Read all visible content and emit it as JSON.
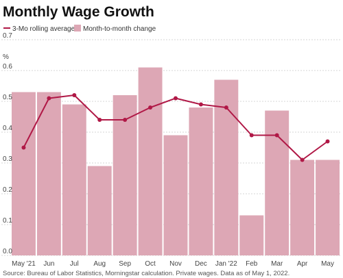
{
  "chart_data": {
    "type": "bar",
    "title": "Monthly Wage Growth",
    "ylabel": "%",
    "ylim": [
      0,
      0.7
    ],
    "yticks": [
      "0.0",
      "0.1",
      "0.2",
      "0.3",
      "0.4",
      "0.5",
      "0.6",
      "0.7"
    ],
    "grid": true,
    "legend_position": "top-left",
    "categories": [
      "May '21",
      "Jun",
      "Jul",
      "Aug",
      "Sep",
      "Oct",
      "Nov",
      "Dec",
      "Jan '22",
      "Feb",
      "Mar",
      "Apr",
      "May"
    ],
    "series": [
      {
        "name": "3-Mo rolling average",
        "kind": "line",
        "color": "#b01846",
        "values": [
          0.35,
          0.51,
          0.52,
          0.44,
          0.44,
          0.48,
          0.51,
          0.49,
          0.48,
          0.39,
          0.39,
          0.31,
          0.37
        ]
      },
      {
        "name": "Month-to-month change",
        "kind": "bar",
        "color": "#dda7b5",
        "values": [
          0.53,
          0.53,
          0.49,
          0.29,
          0.52,
          0.61,
          0.39,
          0.48,
          0.57,
          0.13,
          0.47,
          0.31,
          0.31
        ]
      }
    ],
    "source": "Source: Bureau of Labor Statistics, Morningstar calculation. Private wages. Data as of May 1, 2022."
  }
}
